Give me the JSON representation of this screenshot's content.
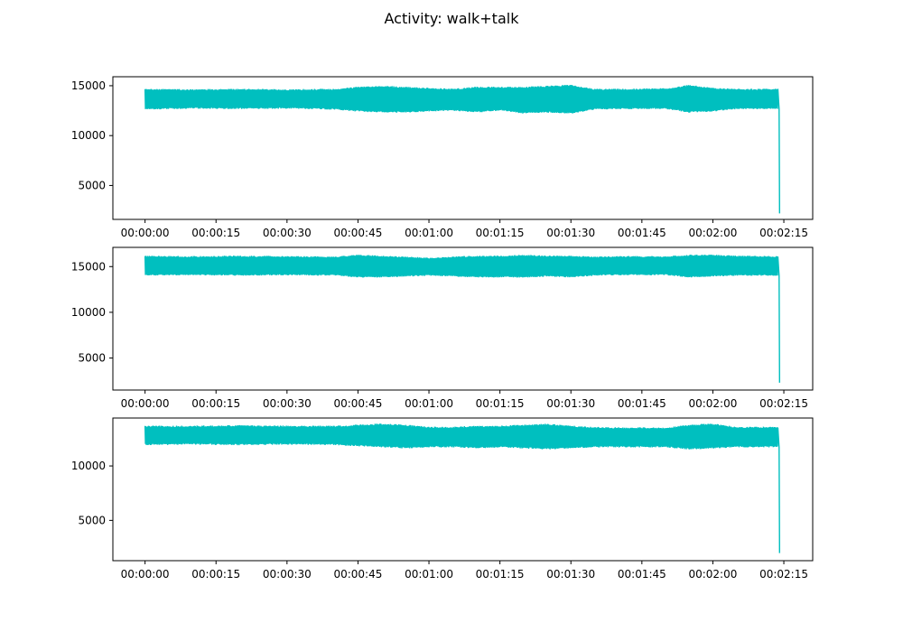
{
  "title": "Activity: walk+talk",
  "colors": {
    "series": "#00bfbf",
    "axes": "#000000",
    "background": "#ffffff"
  },
  "chart_data": [
    {
      "type": "line",
      "title": "",
      "xlabel": "",
      "ylabel": "",
      "x_tick_labels": [
        "00:00:00",
        "00:00:15",
        "00:00:30",
        "00:00:45",
        "00:01:00",
        "00:01:15",
        "00:01:30",
        "00:01:45",
        "00:02:00",
        "00:02:15"
      ],
      "x_tick_seconds": [
        0,
        15,
        30,
        45,
        60,
        75,
        90,
        105,
        120,
        135
      ],
      "xlim_seconds": [
        -6.8,
        141.1
      ],
      "yticks": [
        5000,
        10000,
        15000
      ],
      "ylim": [
        1600,
        15900
      ],
      "grid": false,
      "series": [
        {
          "end_seconds": 134.1,
          "final_value": 2200,
          "envelope": [
            [
              0,
              12600,
              14700
            ],
            [
              10,
              12700,
              14650
            ],
            [
              20,
              12650,
              14700
            ],
            [
              30,
              12700,
              14650
            ],
            [
              40,
              12600,
              14700
            ],
            [
              45,
              12400,
              14900
            ],
            [
              50,
              12300,
              15000
            ],
            [
              55,
              12300,
              14900
            ],
            [
              60,
              12400,
              14800
            ],
            [
              65,
              12500,
              14700
            ],
            [
              70,
              12300,
              14900
            ],
            [
              75,
              12500,
              14900
            ],
            [
              80,
              12200,
              14900
            ],
            [
              85,
              12300,
              15000
            ],
            [
              90,
              12200,
              15100
            ],
            [
              95,
              12600,
              14700
            ],
            [
              100,
              12650,
              14700
            ],
            [
              110,
              12650,
              14750
            ],
            [
              115,
              12300,
              15100
            ],
            [
              120,
              12400,
              14800
            ],
            [
              125,
              12650,
              14700
            ],
            [
              134,
              12650,
              14700
            ]
          ]
        }
      ]
    },
    {
      "type": "line",
      "title": "",
      "xlabel": "",
      "ylabel": "",
      "x_tick_labels": [
        "00:00:00",
        "00:00:15",
        "00:00:30",
        "00:00:45",
        "00:01:00",
        "00:01:15",
        "00:01:30",
        "00:01:45",
        "00:02:00",
        "00:02:15"
      ],
      "x_tick_seconds": [
        0,
        15,
        30,
        45,
        60,
        75,
        90,
        105,
        120,
        135
      ],
      "xlim_seconds": [
        -6.8,
        141.1
      ],
      "yticks": [
        5000,
        10000,
        15000
      ],
      "ylim": [
        1500,
        17100
      ],
      "grid": false,
      "series": [
        {
          "end_seconds": 134.1,
          "final_value": 2300,
          "envelope": [
            [
              0,
              14000,
              16200
            ],
            [
              10,
              14050,
              16150
            ],
            [
              20,
              14000,
              16200
            ],
            [
              30,
              14050,
              16150
            ],
            [
              40,
              14000,
              16100
            ],
            [
              45,
              13800,
              16300
            ],
            [
              50,
              13800,
              16200
            ],
            [
              55,
              13900,
              16100
            ],
            [
              60,
              14000,
              16000
            ],
            [
              65,
              13900,
              16100
            ],
            [
              70,
              13800,
              16200
            ],
            [
              75,
              13800,
              16200
            ],
            [
              80,
              13800,
              16300
            ],
            [
              85,
              13900,
              16200
            ],
            [
              90,
              13800,
              16200
            ],
            [
              95,
              14000,
              16100
            ],
            [
              100,
              14050,
              16150
            ],
            [
              110,
              14050,
              16150
            ],
            [
              115,
              13800,
              16300
            ],
            [
              120,
              13900,
              16300
            ],
            [
              125,
              14000,
              16200
            ],
            [
              134,
              14000,
              16150
            ]
          ]
        }
      ]
    },
    {
      "type": "line",
      "title": "",
      "xlabel": "",
      "ylabel": "",
      "x_tick_labels": [
        "00:00:00",
        "00:00:15",
        "00:00:30",
        "00:00:45",
        "00:01:00",
        "00:01:15",
        "00:01:30",
        "00:01:45",
        "00:02:00",
        "00:02:15"
      ],
      "x_tick_seconds": [
        0,
        15,
        30,
        45,
        60,
        75,
        90,
        105,
        120,
        135
      ],
      "xlim_seconds": [
        -6.8,
        141.1
      ],
      "yticks": [
        10000,
        5000
      ],
      "ylim": [
        1300,
        14400
      ],
      "grid": false,
      "series": [
        {
          "end_seconds": 134.1,
          "final_value": 2000,
          "envelope": [
            [
              0,
              11900,
              13700
            ],
            [
              10,
              11950,
              13700
            ],
            [
              20,
              11900,
              13750
            ],
            [
              30,
              11950,
              13700
            ],
            [
              40,
              11900,
              13700
            ],
            [
              45,
              11800,
              13800
            ],
            [
              50,
              11700,
              13900
            ],
            [
              55,
              11600,
              13800
            ],
            [
              60,
              11700,
              13600
            ],
            [
              65,
              11700,
              13600
            ],
            [
              70,
              11600,
              13700
            ],
            [
              75,
              11700,
              13700
            ],
            [
              80,
              11600,
              13800
            ],
            [
              85,
              11500,
              13900
            ],
            [
              90,
              11600,
              13700
            ],
            [
              95,
              11700,
              13600
            ],
            [
              100,
              11700,
              13550
            ],
            [
              110,
              11700,
              13550
            ],
            [
              115,
              11500,
              13800
            ],
            [
              120,
              11600,
              13900
            ],
            [
              125,
              11700,
              13600
            ],
            [
              134,
              11700,
              13600
            ]
          ]
        }
      ]
    }
  ]
}
